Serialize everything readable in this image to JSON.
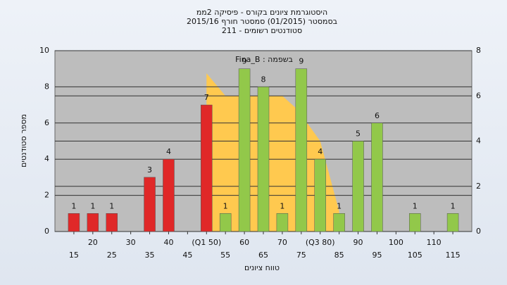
{
  "chart_data": {
    "type": "bar",
    "title": "היסטוגרמת ציונים בקורס - פיסיקה 2ממ",
    "subtitle": "בסמסטר  (01/2015)  סמסטר חורף 2015/16",
    "subtitle2": "סטודנטים רשומים - 211",
    "annotation": "Fina_B : בשפמה",
    "xlabel": "טווח ציונים",
    "ylabel": "מספר סטודנטים",
    "x": [
      15,
      20,
      25,
      30,
      35,
      40,
      45,
      50,
      55,
      60,
      65,
      70,
      75,
      80,
      85,
      90,
      95,
      100,
      105,
      110,
      115
    ],
    "values": [
      1,
      1,
      1,
      null,
      3,
      4,
      null,
      7,
      1,
      9,
      8,
      1,
      9,
      4,
      1,
      5,
      6,
      null,
      1,
      null,
      1
    ],
    "bar_colors": [
      "#e02828",
      "#e02828",
      "#e02828",
      "#e02828",
      "#e02828",
      "#e02828",
      "#e02828",
      "#e02828",
      "#92c84a",
      "#92c84a",
      "#92c84a",
      "#92c84a",
      "#92c84a",
      "#92c84a",
      "#92c84a",
      "#92c84a",
      "#92c84a",
      "#92c84a",
      "#92c84a",
      "#92c84a",
      "#92c84a"
    ],
    "area": {
      "axis": "y2",
      "color": "#ffc94f",
      "x": [
        50,
        50,
        55,
        70,
        74,
        80,
        85
      ],
      "values": [
        0,
        7,
        6,
        6,
        5.4,
        4,
        0.9
      ]
    },
    "xlim": [
      10,
      120
    ],
    "xticks": [
      15,
      20,
      25,
      30,
      35,
      40,
      45,
      {
        "value": 50,
        "label": "(Q1 50)"
      },
      55,
      60,
      65,
      70,
      75,
      {
        "value": 80,
        "label": "(Q3 80)"
      },
      85,
      90,
      95,
      100,
      105,
      110,
      115
    ],
    "ylim": [
      0,
      10
    ],
    "yticks": [
      0,
      2,
      4,
      6,
      8,
      10
    ],
    "y2lim": [
      0,
      8
    ],
    "y2ticks": [
      0,
      2,
      4,
      6,
      8
    ],
    "grid": true
  }
}
